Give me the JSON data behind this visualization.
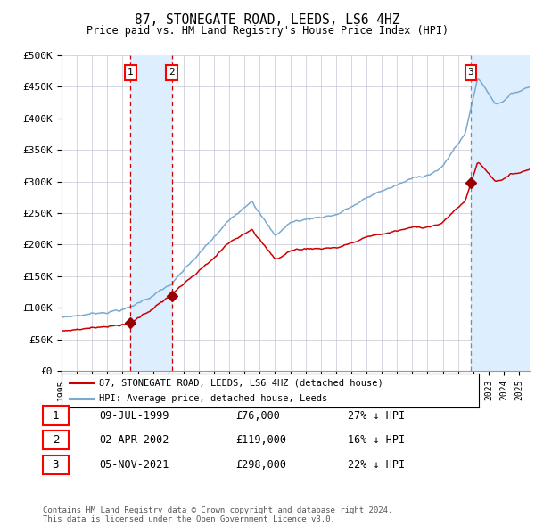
{
  "title": "87, STONEGATE ROAD, LEEDS, LS6 4HZ",
  "subtitle": "Price paid vs. HM Land Registry's House Price Index (HPI)",
  "legend_entries": [
    "87, STONEGATE ROAD, LEEDS, LS6 4HZ (detached house)",
    "HPI: Average price, detached house, Leeds"
  ],
  "transactions": [
    {
      "label": "1",
      "date": "09-JUL-1999",
      "date_num": 1999.52,
      "price": 76000,
      "note": "27% ↓ HPI"
    },
    {
      "label": "2",
      "date": "02-APR-2002",
      "date_num": 2002.25,
      "price": 119000,
      "note": "16% ↓ HPI"
    },
    {
      "label": "3",
      "date": "05-NOV-2021",
      "date_num": 2021.84,
      "price": 298000,
      "note": "22% ↓ HPI"
    }
  ],
  "hpi_line_color": "#7aaad0",
  "property_line_color": "#cc0000",
  "marker_color": "#990000",
  "vertical_line_color_red": "#cc0000",
  "vertical_line_color_gray": "#888888",
  "shade_color": "#ddeeff",
  "grid_color": "#bbbbcc",
  "background_color": "#ffffff",
  "ylim": [
    0,
    500000
  ],
  "xlim_start": 1995.0,
  "xlim_end": 2025.7,
  "footer": "Contains HM Land Registry data © Crown copyright and database right 2024.\nThis data is licensed under the Open Government Licence v3.0.",
  "ytick_labels": [
    "£0",
    "£50K",
    "£100K",
    "£150K",
    "£200K",
    "£250K",
    "£300K",
    "£350K",
    "£400K",
    "£450K",
    "£500K"
  ],
  "ytick_values": [
    0,
    50000,
    100000,
    150000,
    200000,
    250000,
    300000,
    350000,
    400000,
    450000,
    500000
  ]
}
